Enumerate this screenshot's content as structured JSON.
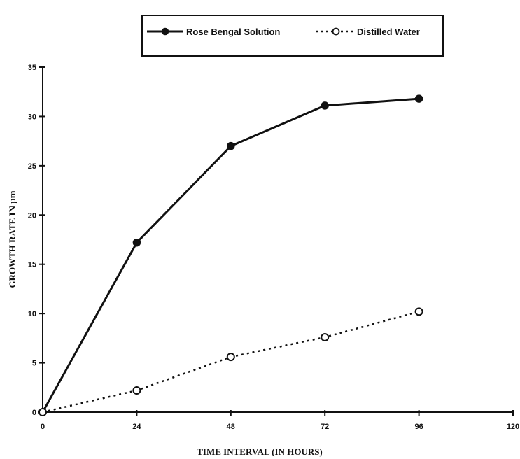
{
  "chart_data": {
    "type": "line",
    "xlabel": "TIME INTERVAL (IN HOURS)",
    "ylabel": "GROWTH RATE IN µm",
    "xlim": [
      0,
      120
    ],
    "ylim": [
      0,
      35
    ],
    "x_ticks": [
      "0",
      "24",
      "48",
      "72",
      "96",
      "120"
    ],
    "y_ticks": [
      "0",
      "5",
      "10",
      "15",
      "20",
      "25",
      "30",
      "35"
    ],
    "legend_position": "top-center",
    "grid": false,
    "series": [
      {
        "name": "Rose Bengal Solution",
        "style": "solid",
        "marker": "filled-circle",
        "color": "#111111",
        "x": [
          0,
          24,
          48,
          72,
          96
        ],
        "y": [
          0,
          17.2,
          27,
          31.1,
          31.8
        ]
      },
      {
        "name": "Distilled Water",
        "style": "dotted",
        "marker": "open-circle",
        "color": "#111111",
        "x": [
          0,
          24,
          48,
          72,
          96
        ],
        "y": [
          0,
          2.2,
          5.6,
          7.6,
          10.2
        ]
      }
    ]
  }
}
